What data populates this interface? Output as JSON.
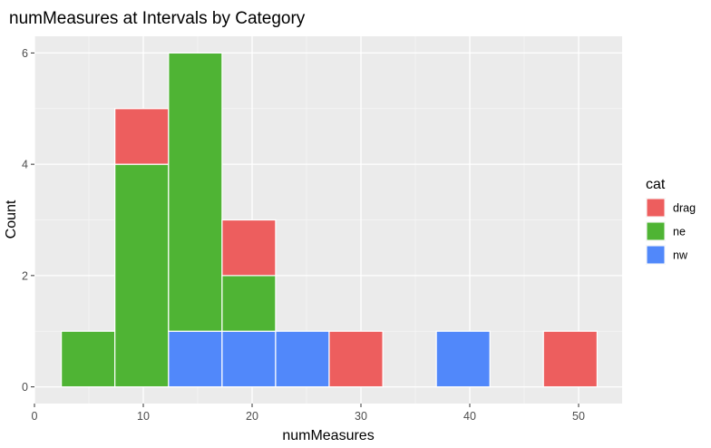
{
  "chart_data": {
    "type": "bar",
    "title": "numMeasures at Intervals by Category",
    "xlabel": "numMeasures",
    "ylabel": "Count",
    "xlim": [
      0,
      54
    ],
    "ylim": [
      -0.3,
      6.3
    ],
    "x_ticks": [
      0,
      10,
      20,
      30,
      40,
      50
    ],
    "y_ticks": [
      0,
      2,
      4,
      6
    ],
    "x_ticks_minor": [
      5,
      15,
      25,
      35,
      45
    ],
    "y_ticks_minor": [
      1,
      3,
      5
    ],
    "grid": true,
    "stacked": true,
    "bin_edges": [
      2.47,
      7.39,
      12.32,
      17.24,
      22.16,
      27.08,
      32.01,
      36.93,
      41.85,
      46.77,
      51.7
    ],
    "legend_title": "cat",
    "legend_position": "right",
    "series": [
      {
        "name": "drag",
        "color": "#ED5E5E",
        "values": [
          0,
          1,
          0,
          1,
          0,
          1,
          0,
          0,
          0,
          1
        ]
      },
      {
        "name": "ne",
        "color": "#4FB434",
        "values": [
          1,
          4,
          5,
          1,
          0,
          0,
          0,
          0,
          0,
          0
        ]
      },
      {
        "name": "nw",
        "color": "#5188FA",
        "values": [
          0,
          0,
          1,
          1,
          1,
          0,
          0,
          1,
          0,
          0
        ]
      }
    ]
  }
}
